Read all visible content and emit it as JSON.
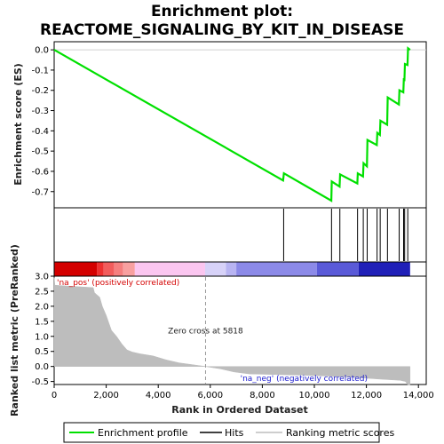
{
  "chart_data": {
    "type": "line",
    "title_line1": "Enrichment plot:",
    "title_line2": "REACTOME_SIGNALING_BY_KIT_IN_DISEASE",
    "es_panel": {
      "ylabel": "Enrichment score (ES)",
      "ylim": [
        -0.78,
        0.04
      ],
      "yticks": [
        0.0,
        -0.1,
        -0.2,
        -0.3,
        -0.4,
        -0.5,
        -0.6,
        -0.7
      ],
      "ytick_labels": [
        "0.0",
        "-0.1",
        "-0.2",
        "-0.3",
        "-0.4",
        "-0.5",
        "-0.6",
        "-0.7"
      ],
      "series_name": "Enrichment profile",
      "color": "#00e000",
      "points": [
        [
          0,
          0.0
        ],
        [
          8800,
          -0.645
        ],
        [
          8830,
          -0.61
        ],
        [
          10650,
          -0.745
        ],
        [
          10670,
          -0.65
        ],
        [
          10970,
          -0.675
        ],
        [
          10990,
          -0.615
        ],
        [
          11650,
          -0.66
        ],
        [
          11670,
          -0.61
        ],
        [
          11870,
          -0.625
        ],
        [
          11890,
          -0.56
        ],
        [
          12020,
          -0.575
        ],
        [
          12040,
          -0.445
        ],
        [
          12400,
          -0.47
        ],
        [
          12420,
          -0.41
        ],
        [
          12520,
          -0.42
        ],
        [
          12540,
          -0.35
        ],
        [
          12800,
          -0.37
        ],
        [
          12820,
          -0.235
        ],
        [
          13250,
          -0.27
        ],
        [
          13270,
          -0.2
        ],
        [
          13420,
          -0.21
        ],
        [
          13440,
          -0.14
        ],
        [
          13460,
          -0.155
        ],
        [
          13480,
          -0.07
        ],
        [
          13580,
          -0.075
        ],
        [
          13600,
          0.008
        ],
        [
          13680,
          0.0
        ]
      ]
    },
    "hits_panel": {
      "series_name": "Hits",
      "positions": [
        8820,
        10660,
        10980,
        11660,
        11880,
        12030,
        12410,
        12530,
        12810,
        13260,
        13430,
        13470,
        13590
      ]
    },
    "color_bar": {
      "segments": [
        {
          "from": 0,
          "to": 1650,
          "color": "#d40000"
        },
        {
          "from": 1650,
          "to": 1900,
          "color": "#ee3030"
        },
        {
          "from": 1900,
          "to": 2300,
          "color": "#f25c5c"
        },
        {
          "from": 2300,
          "to": 2650,
          "color": "#f57f7f"
        },
        {
          "from": 2650,
          "to": 3100,
          "color": "#f8a0a0"
        },
        {
          "from": 3100,
          "to": 5800,
          "color": "#fbc6f0"
        },
        {
          "from": 5800,
          "to": 6600,
          "color": "#d7d2f8"
        },
        {
          "from": 6600,
          "to": 7000,
          "color": "#b8b4f2"
        },
        {
          "from": 7000,
          "to": 10100,
          "color": "#8c8ae8"
        },
        {
          "from": 10100,
          "to": 11700,
          "color": "#5a5ad8"
        },
        {
          "from": 11700,
          "to": 13680,
          "color": "#2020b8"
        }
      ]
    },
    "rank_panel": {
      "ylabel": "Ranked list metric (PreRanked)",
      "ylim": [
        -0.6,
        3.0
      ],
      "yticks": [
        3.0,
        2.5,
        2.0,
        1.5,
        1.0,
        0.5,
        0.0,
        -0.5
      ],
      "ytick_labels": [
        "3.0",
        "2.5",
        "2.0",
        "1.5",
        "1.0",
        "0.5",
        "0.0",
        "-0.5"
      ],
      "series_name": "Ranking metric scores",
      "color": "#bdbdbd",
      "points": [
        [
          0,
          2.95
        ],
        [
          30,
          2.7
        ],
        [
          1500,
          2.62
        ],
        [
          1550,
          2.45
        ],
        [
          1750,
          2.3
        ],
        [
          1850,
          2.0
        ],
        [
          2000,
          1.7
        ],
        [
          2100,
          1.45
        ],
        [
          2200,
          1.2
        ],
        [
          2400,
          1.0
        ],
        [
          2600,
          0.75
        ],
        [
          2800,
          0.55
        ],
        [
          3000,
          0.48
        ],
        [
          3300,
          0.42
        ],
        [
          3800,
          0.35
        ],
        [
          4300,
          0.22
        ],
        [
          4800,
          0.12
        ],
        [
          5300,
          0.06
        ],
        [
          5818,
          0.0
        ],
        [
          6400,
          -0.08
        ],
        [
          6900,
          -0.18
        ],
        [
          7500,
          -0.25
        ],
        [
          8500,
          -0.27
        ],
        [
          9500,
          -0.29
        ],
        [
          10500,
          -0.32
        ],
        [
          11500,
          -0.36
        ],
        [
          12500,
          -0.42
        ],
        [
          13300,
          -0.46
        ],
        [
          13500,
          -0.5
        ],
        [
          13600,
          -0.62
        ],
        [
          13680,
          -0.62
        ]
      ],
      "zero_cross_x": 5818,
      "zero_cross_label": "Zero cross at 5818",
      "pos_label": "'na_pos' (positively correlated)",
      "neg_label": "'na_neg' (negatively correlated)"
    },
    "x_axis": {
      "xlabel": "Rank in Ordered Dataset",
      "xlim": [
        0,
        14300
      ],
      "xticks": [
        0,
        2000,
        4000,
        6000,
        8000,
        10000,
        12000,
        14000
      ],
      "xtick_labels": [
        "0",
        "2,000",
        "4,000",
        "6,000",
        "8,000",
        "10,000",
        "12,000",
        "14,000"
      ]
    },
    "legend": {
      "items": [
        {
          "label": "Enrichment profile",
          "color": "#00e000"
        },
        {
          "label": "Hits",
          "color": "#000000"
        },
        {
          "label": "Ranking metric scores",
          "color": "#bdbdbd"
        }
      ]
    }
  }
}
